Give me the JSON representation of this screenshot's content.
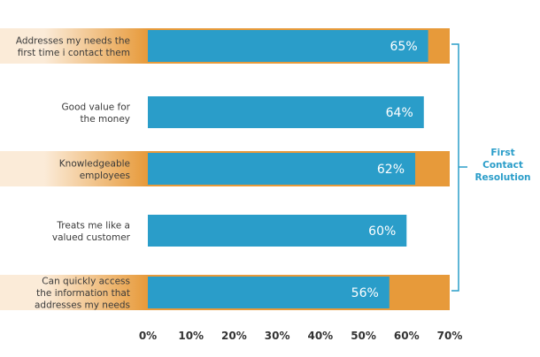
{
  "chart_data": {
    "type": "bar",
    "orientation": "horizontal",
    "categories": [
      [
        "Addresses my needs the",
        "first time i contact them"
      ],
      [
        "Good value for",
        "the money"
      ],
      [
        "Knowledgeable",
        "employees"
      ],
      [
        "Treats me like a",
        "valued customer"
      ],
      [
        "Can quickly access",
        "the information that",
        "addresses my needs"
      ]
    ],
    "values": [
      65,
      64,
      62,
      60,
      56
    ],
    "value_labels": [
      "65%",
      "64%",
      "62%",
      "60%",
      "56%"
    ],
    "highlighted": [
      true,
      false,
      true,
      false,
      true
    ],
    "xlim": [
      0,
      70
    ],
    "xticks": [
      0,
      10,
      20,
      30,
      40,
      50,
      60,
      70
    ],
    "xtick_labels": [
      "0%",
      "10%",
      "20%",
      "30%",
      "40%",
      "50%",
      "60%",
      "70%"
    ],
    "annotation": {
      "lines": [
        "First",
        "Contact",
        "Resolution"
      ],
      "applies_to": [
        0,
        2,
        4
      ]
    },
    "title": "",
    "xlabel": "",
    "ylabel": ""
  },
  "colors": {
    "bar": "#2a9dc9",
    "highlight": "#e79a3a",
    "highlight_light": "#fbebd8",
    "annotation": "#2a9dc9"
  }
}
